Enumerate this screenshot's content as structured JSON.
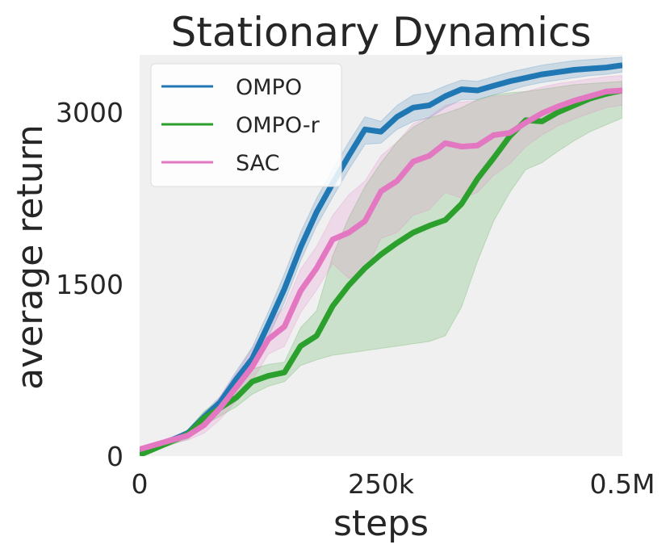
{
  "chart_data": {
    "type": "line",
    "title": "Stationary Dynamics",
    "xlabel": "steps",
    "ylabel": "average return",
    "xlim": [
      0,
      500000
    ],
    "ylim": [
      0,
      3500
    ],
    "xticks": [
      {
        "value": 0,
        "label": "0"
      },
      {
        "value": 250000,
        "label": "250k"
      },
      {
        "value": 500000,
        "label": "0.5M"
      }
    ],
    "yticks": [
      {
        "value": 0,
        "label": "0"
      },
      {
        "value": 1500,
        "label": "1500"
      },
      {
        "value": 3000,
        "label": "3000"
      }
    ],
    "grid": false,
    "legend_position": "top-left",
    "x": [
      0,
      16667,
      33333,
      50000,
      66667,
      83333,
      100000,
      116667,
      133333,
      150000,
      166667,
      183333,
      200000,
      216667,
      233333,
      250000,
      266667,
      283333,
      300000,
      316667,
      333333,
      350000,
      366667,
      383333,
      400000,
      416667,
      433333,
      450000,
      466667,
      483333,
      500000
    ],
    "series": [
      {
        "name": "OMPO",
        "color": "#1f77b4",
        "values": [
          50,
          90,
          140,
          200,
          340,
          470,
          670,
          850,
          1150,
          1460,
          1820,
          2130,
          2380,
          2620,
          2850,
          2830,
          2960,
          3040,
          3060,
          3140,
          3200,
          3190,
          3230,
          3270,
          3300,
          3330,
          3350,
          3370,
          3380,
          3390,
          3410
        ],
        "lower": [
          40,
          80,
          120,
          180,
          300,
          420,
          600,
          760,
          1040,
          1340,
          1700,
          2010,
          2260,
          2500,
          2720,
          2730,
          2850,
          2920,
          2950,
          3040,
          3110,
          3110,
          3150,
          3190,
          3230,
          3260,
          3280,
          3300,
          3320,
          3330,
          3350
        ],
        "upper": [
          60,
          100,
          160,
          230,
          380,
          520,
          740,
          950,
          1260,
          1590,
          1950,
          2250,
          2500,
          2740,
          2960,
          2920,
          3060,
          3150,
          3170,
          3230,
          3280,
          3270,
          3310,
          3350,
          3380,
          3410,
          3430,
          3450,
          3460,
          3470,
          3480
        ]
      },
      {
        "name": "OMPO-r",
        "color": "#2ca02c",
        "values": [
          10,
          70,
          130,
          190,
          330,
          420,
          510,
          650,
          700,
          730,
          960,
          1050,
          1310,
          1490,
          1640,
          1760,
          1860,
          1950,
          2010,
          2060,
          2200,
          2420,
          2600,
          2790,
          2930,
          2920,
          3000,
          3060,
          3120,
          3160,
          3190
        ],
        "lower": [
          5,
          50,
          100,
          150,
          270,
          350,
          430,
          540,
          610,
          650,
          790,
          840,
          880,
          900,
          920,
          940,
          960,
          980,
          1000,
          1050,
          1300,
          1700,
          2050,
          2300,
          2500,
          2560,
          2660,
          2750,
          2830,
          2890,
          2950
        ],
        "upper": [
          20,
          90,
          160,
          230,
          390,
          490,
          600,
          760,
          800,
          820,
          1120,
          1270,
          1750,
          2080,
          2350,
          2560,
          2740,
          2870,
          2950,
          2990,
          3040,
          3110,
          3150,
          3170,
          3180,
          3200,
          3220,
          3240,
          3250,
          3260,
          3270
        ]
      },
      {
        "name": "SAC",
        "color": "#e377c2",
        "values": [
          60,
          100,
          140,
          180,
          270,
          420,
          600,
          780,
          1020,
          1130,
          1440,
          1640,
          1890,
          1950,
          2050,
          2310,
          2400,
          2570,
          2620,
          2730,
          2700,
          2710,
          2800,
          2820,
          2910,
          2990,
          3050,
          3100,
          3140,
          3180,
          3190
        ],
        "lower": [
          50,
          80,
          110,
          140,
          200,
          320,
          480,
          660,
          890,
          960,
          1250,
          1450,
          1680,
          1550,
          1600,
          1900,
          1950,
          2100,
          2150,
          2300,
          2250,
          2300,
          2450,
          2550,
          2700,
          2800,
          2880,
          2940,
          2990,
          3040,
          3060
        ],
        "upper": [
          70,
          120,
          170,
          220,
          340,
          520,
          720,
          940,
          1160,
          1300,
          1630,
          1830,
          2100,
          2280,
          2400,
          2620,
          2740,
          2900,
          2960,
          3060,
          3090,
          3100,
          3140,
          3150,
          3180,
          3220,
          3250,
          3270,
          3290,
          3310,
          3320
        ]
      }
    ]
  }
}
